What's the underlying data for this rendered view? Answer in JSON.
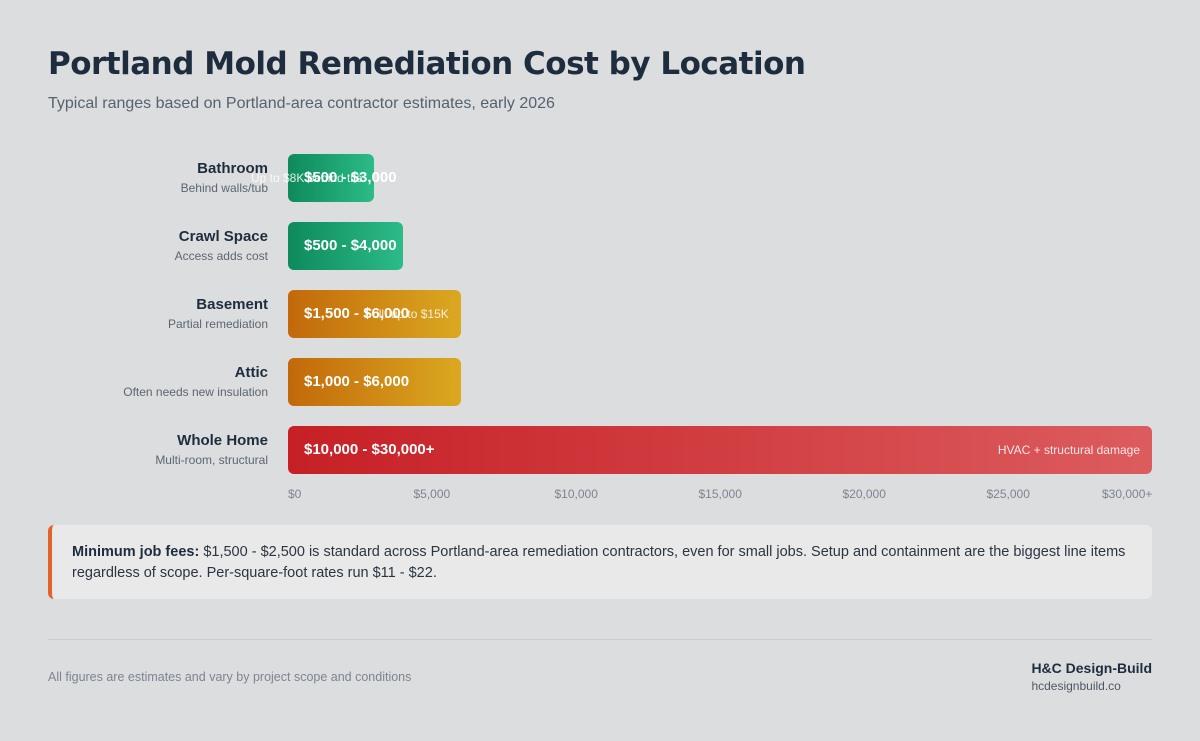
{
  "header": {
    "title": "Portland Mold Remediation Cost by Location",
    "subtitle": "Typical ranges based on Portland-area contractor estimates, early 2026"
  },
  "chart_data": {
    "type": "bar",
    "orientation": "horizontal",
    "categories": [
      "Bathroom",
      "Crawl Space",
      "Basement",
      "Attic",
      "Whole Home"
    ],
    "sublabels": [
      "Behind walls/tub",
      "Access adds cost",
      "Partial remediation",
      "Often needs new insulation",
      "Multi-room, structural"
    ],
    "values": [
      3000,
      4000,
      6000,
      6000,
      30000
    ],
    "value_labels": [
      "$500 - $3,000",
      "$500 - $4,000",
      "$1,500 - $6,000",
      "$1,000 - $6,000",
      "$10,000 - $30,000+"
    ],
    "notes": [
      "Up to $8K behind tile",
      "",
      "Full: up to $15K",
      "",
      "HVAC + structural damage"
    ],
    "colors": [
      [
        "#0e8a5c",
        "#2cbb88"
      ],
      [
        "#0e8a5c",
        "#2cbb88"
      ],
      [
        "#c2690a",
        "#dba820"
      ],
      [
        "#c2690a",
        "#dba820"
      ],
      [
        "#c62026",
        "#dc5c5e"
      ]
    ],
    "xlim": [
      0,
      30000
    ],
    "x_ticks": [
      0,
      5000,
      10000,
      15000,
      20000,
      25000,
      30000
    ],
    "x_tick_labels": [
      "$0",
      "$5,000",
      "$10,000",
      "$15,000",
      "$20,000",
      "$25,000",
      "$30,000+"
    ],
    "grid": false,
    "legend": "none"
  },
  "callout": {
    "label": "Minimum job fees:",
    "text": "$1,500 - $2,500 is standard across Portland-area remediation contractors, even for small jobs. Setup and containment are the biggest line items regardless of scope. Per-square-foot rates run $11 - $22."
  },
  "footer": {
    "note": "All figures are estimates and vary by project scope and conditions",
    "brand": "H&C Design-Build",
    "url": "hcdesignbuild.co"
  }
}
